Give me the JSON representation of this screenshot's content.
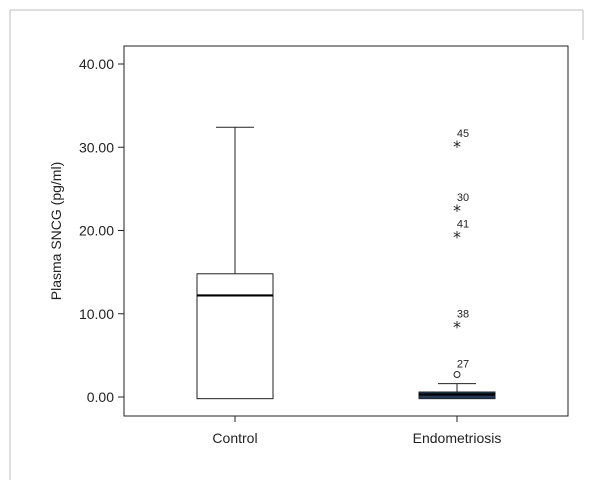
{
  "chart_data": {
    "type": "box",
    "title": "",
    "xlabel": "",
    "ylabel": "Plasma SNCG (pg/ml)",
    "ylim": [
      0,
      40
    ],
    "yticks": [
      "0.00",
      "10.00",
      "20.00",
      "30.00",
      "40.00"
    ],
    "ytick_values": [
      0,
      10,
      20,
      30,
      40
    ],
    "grid": false,
    "categories": [
      "Control",
      "Endometriosis"
    ],
    "boxes": [
      {
        "category": "Control",
        "whisker_low": -0.2,
        "q1": -0.2,
        "median": 12.2,
        "q3": 14.8,
        "whisker_high": 32.4,
        "fill": "#ffffff",
        "outliers": []
      },
      {
        "category": "Endometriosis",
        "whisker_low": -0.2,
        "q1": -0.2,
        "median": 0.3,
        "q3": 0.6,
        "whisker_high": 1.6,
        "fill": "#1f3a5f",
        "outliers": [
          {
            "label": "27",
            "value": 2.7,
            "marker": "circle"
          },
          {
            "label": "38",
            "value": 8.7,
            "marker": "star"
          },
          {
            "label": "41",
            "value": 19.5,
            "marker": "star"
          },
          {
            "label": "30",
            "value": 22.7,
            "marker": "star"
          },
          {
            "label": "45",
            "value": 30.4,
            "marker": "star"
          }
        ]
      }
    ]
  }
}
